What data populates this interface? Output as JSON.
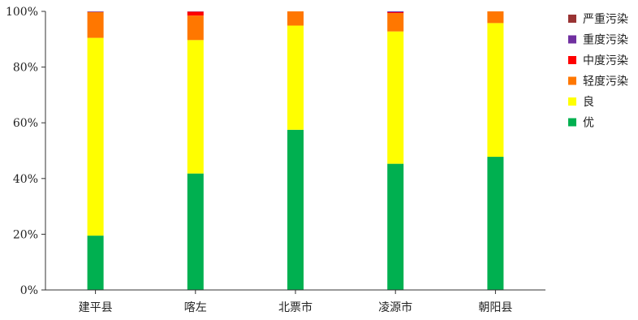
{
  "chart_data": {
    "type": "bar",
    "stacked": true,
    "percent": true,
    "categories": [
      "建平县",
      "喀左",
      "北票市",
      "凌源市",
      "朝阳县"
    ],
    "ylim": [
      0,
      100
    ],
    "yticks": [
      0,
      20,
      40,
      60,
      80,
      100
    ],
    "ytick_labels": [
      "0%",
      "20%",
      "40%",
      "60%",
      "80%",
      "100%"
    ],
    "grid": false,
    "legend_position": "right",
    "series": [
      {
        "name": "优",
        "color": "#00b050",
        "values": [
          19.5,
          41.8,
          57.5,
          45.3,
          47.8
        ]
      },
      {
        "name": "良",
        "color": "#ffff00",
        "values": [
          71.0,
          47.9,
          37.4,
          47.5,
          48.0
        ]
      },
      {
        "name": "轻度污染",
        "color": "#ff7700",
        "values": [
          9.3,
          8.8,
          5.1,
          6.6,
          4.2
        ]
      },
      {
        "name": "中度污染",
        "color": "#ff0000",
        "values": [
          0.0,
          1.4,
          0.0,
          0.3,
          0.0
        ]
      },
      {
        "name": "重度污染",
        "color": "#7030a0",
        "values": [
          0.2,
          0.1,
          0.0,
          0.3,
          0.0
        ]
      },
      {
        "name": "严重污染",
        "color": "#993333",
        "values": [
          0.0,
          0.0,
          0.0,
          0.0,
          0.0
        ]
      }
    ],
    "legend_order": [
      "严重污染",
      "重度污染",
      "中度污染",
      "轻度污染",
      "良",
      "优"
    ]
  }
}
